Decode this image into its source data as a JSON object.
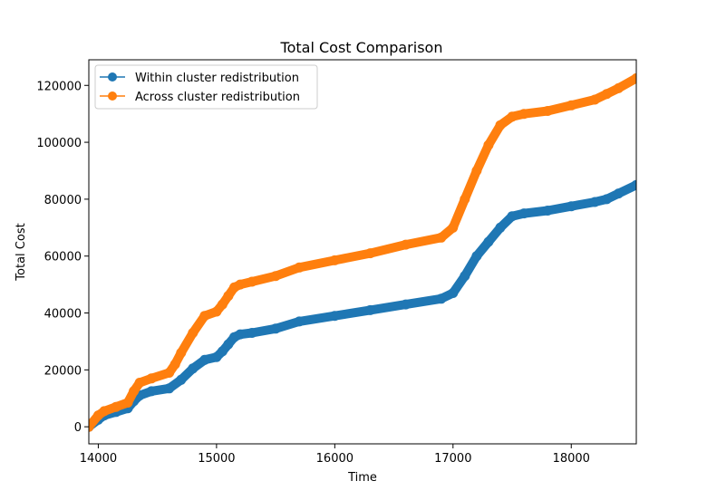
{
  "chart_data": {
    "type": "line",
    "title": "Total Cost Comparison",
    "xlabel": "Time",
    "ylabel": "Total Cost",
    "xlim": [
      13920,
      18550
    ],
    "ylim": [
      -6000,
      129000
    ],
    "xticks": [
      14000,
      15000,
      16000,
      17000,
      18000
    ],
    "yticks": [
      0,
      20000,
      40000,
      60000,
      80000,
      100000,
      120000
    ],
    "xtick_labels": [
      "14000",
      "15000",
      "16000",
      "17000",
      "18000"
    ],
    "ytick_labels": [
      "0",
      "20000",
      "40000",
      "60000",
      "80000",
      "100000",
      "120000"
    ],
    "grid": false,
    "legend_position": "top-left",
    "series": [
      {
        "name": "Within cluster redistribution",
        "color": "#1f77b4",
        "x": [
          13920,
          14000,
          14050,
          14150,
          14250,
          14300,
          14350,
          14450,
          14600,
          14700,
          14800,
          14900,
          15000,
          15050,
          15100,
          15150,
          15200,
          15300,
          15500,
          15700,
          16000,
          16300,
          16600,
          16900,
          17000,
          17100,
          17200,
          17300,
          17400,
          17500,
          17600,
          17800,
          18000,
          18200,
          18300,
          18400,
          18550
        ],
        "y": [
          0,
          2500,
          4000,
          5200,
          6500,
          9000,
          11000,
          12500,
          13500,
          16500,
          20500,
          23500,
          24500,
          26500,
          29000,
          31500,
          32500,
          33000,
          34500,
          37000,
          39000,
          41000,
          43000,
          45000,
          47000,
          53000,
          60000,
          65000,
          70000,
          74000,
          75000,
          76000,
          77500,
          79000,
          80000,
          82000,
          85000
        ]
      },
      {
        "name": "Across cluster redistribution",
        "color": "#ff7f0e",
        "x": [
          13920,
          14000,
          14050,
          14150,
          14250,
          14300,
          14350,
          14450,
          14600,
          14650,
          14700,
          14800,
          14900,
          15000,
          15050,
          15100,
          15150,
          15200,
          15300,
          15500,
          15700,
          16000,
          16300,
          16600,
          16900,
          17000,
          17100,
          17200,
          17300,
          17400,
          17500,
          17600,
          17800,
          18000,
          18200,
          18300,
          18400,
          18550
        ],
        "y": [
          0,
          4000,
          5500,
          7000,
          8500,
          12500,
          15500,
          17000,
          19000,
          22000,
          26000,
          33000,
          39000,
          40500,
          43000,
          46000,
          49000,
          50000,
          51000,
          53000,
          56000,
          58500,
          61000,
          64000,
          66500,
          70000,
          80000,
          90000,
          99000,
          106000,
          109000,
          110000,
          111000,
          113000,
          115000,
          117000,
          119000,
          122500
        ]
      }
    ]
  }
}
